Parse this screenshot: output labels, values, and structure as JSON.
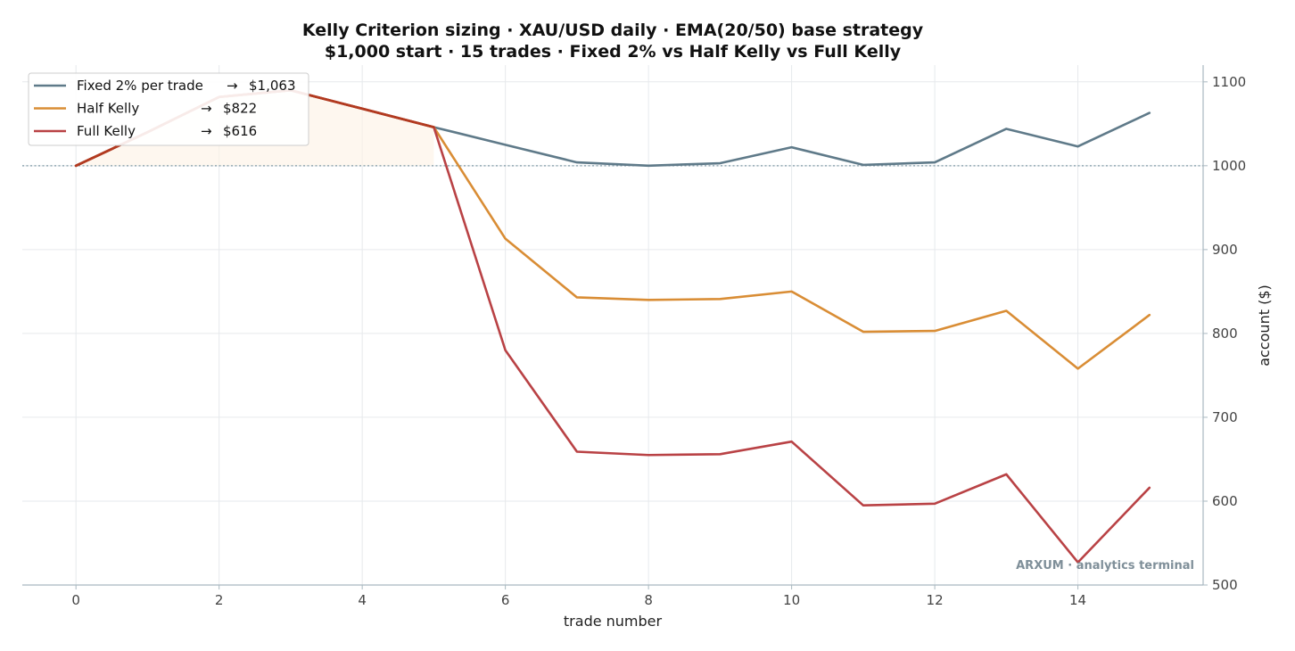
{
  "chart_data": {
    "type": "line",
    "title_line1": "Kelly Criterion sizing · XAU/USD daily · EMA(20/50) base strategy",
    "title_line2": "$1,000 start · 15 trades · Fixed 2% vs Half Kelly vs Full Kelly",
    "xlabel": "trade number",
    "ylabel": "account ($)",
    "xlim": [
      -0.75,
      15.75
    ],
    "ylim": [
      500,
      1120
    ],
    "xticks": [
      0,
      2,
      4,
      6,
      8,
      10,
      12,
      14
    ],
    "yticks": [
      500,
      600,
      700,
      800,
      900,
      1000,
      1100
    ],
    "y_axis_side": "right",
    "grid": true,
    "baseline": 1000,
    "legend_position": "top-left",
    "x": [
      0,
      1,
      2,
      3,
      4,
      5,
      6,
      7,
      8,
      9,
      10,
      11,
      12,
      13,
      14,
      15
    ],
    "series": [
      {
        "name": "Fixed 2% per trade",
        "legend_value": "$1,063",
        "color": "#5f7a89",
        "values": [
          1000,
          1040,
          1082,
          1090,
          1068,
          1046,
          1025,
          1004,
          1000,
          1003,
          1022,
          1001,
          1004,
          1044,
          1023,
          1063
        ]
      },
      {
        "name": "Half Kelly",
        "legend_value": "$822",
        "color": "#d98d35",
        "values": [
          1000,
          1040,
          1082,
          1090,
          1068,
          1046,
          913,
          843,
          840,
          841,
          850,
          802,
          803,
          827,
          758,
          822
        ]
      },
      {
        "name": "Full Kelly",
        "legend_value": "$616",
        "color": "#b94245",
        "values": [
          1000,
          1040,
          1082,
          1090,
          1068,
          1046,
          780,
          659,
          655,
          656,
          671,
          595,
          597,
          632,
          527,
          616
        ]
      }
    ],
    "watermark": "ARXUM · analytics terminal",
    "arrow": "→"
  }
}
